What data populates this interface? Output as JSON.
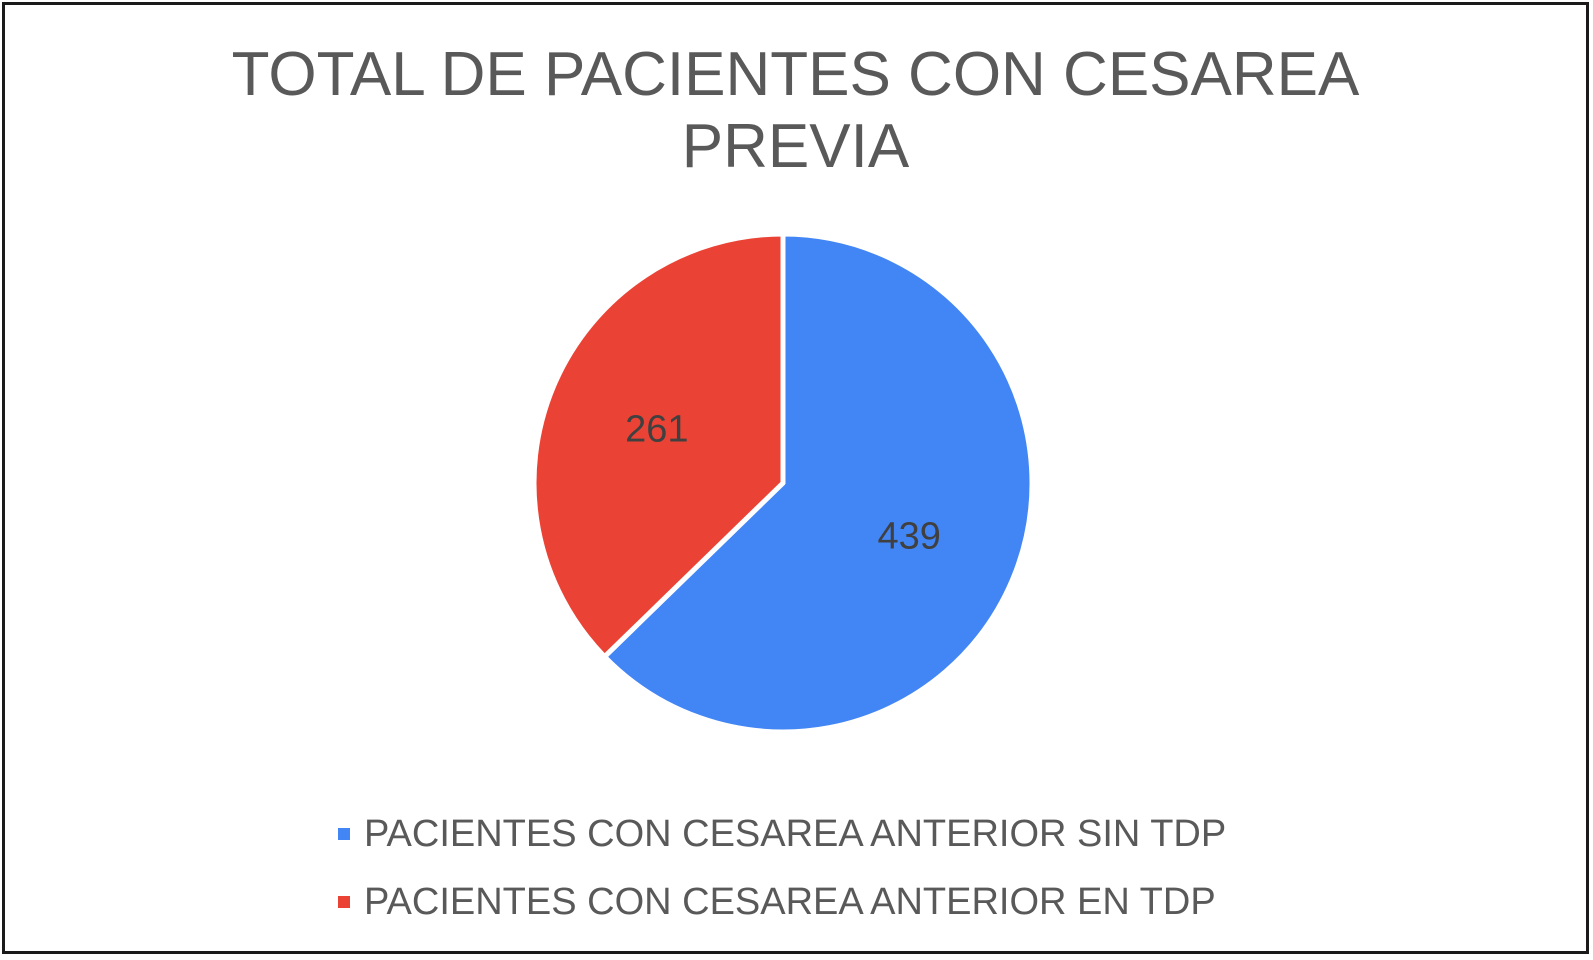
{
  "chart_data": {
    "type": "pie",
    "title_lines": [
      "TOTAL DE PACIENTES CON CESAREA",
      "PREVIA"
    ],
    "slices": [
      {
        "label": "PACIENTES CON CESAREA ANTERIOR SIN TDP",
        "value": 439,
        "color": "#4285f4"
      },
      {
        "label": "PACIENTES CON CESAREA ANTERIOR EN TDP",
        "value": 261,
        "color": "#ea4335"
      }
    ],
    "data_labels": [
      "439",
      "261"
    ],
    "legend_position": "bottom"
  }
}
